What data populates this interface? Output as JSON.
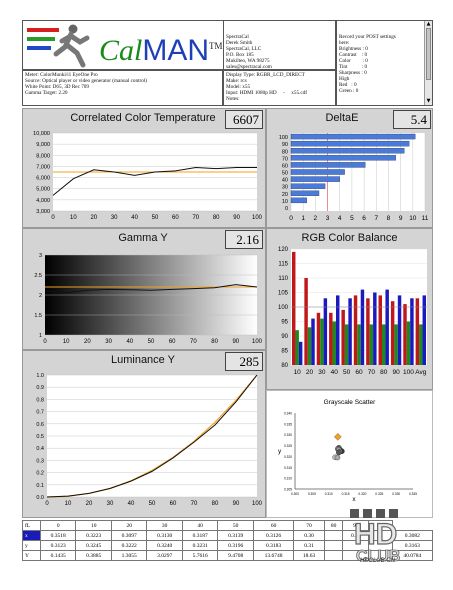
{
  "colors": {
    "panel_bg": "#d4d4d4",
    "plot_bg": "#ffffff",
    "curve": "#111111",
    "target": "#f0a020",
    "bars": "#4a7bd8",
    "red": "#c0181a",
    "green": "#1e8a1e",
    "blue": "#1a1ac0"
  },
  "logo": {
    "text_cal": "Cal",
    "text_man": "MAN",
    "tm": "TM",
    "icon": "running-man-icon"
  },
  "company": [
    "SpectraCal",
    "Derek Smith",
    "SpectraCal, LLC",
    "P.O. Box 185",
    "Mukilteo, WA 98275",
    "sales@spectracal.com"
  ],
  "notes": [
    "Record your POST settings",
    "here:",
    "",
    "Brightness : 0",
    "Contrast    : 0",
    "Color         : 0",
    "Tint           : 0",
    "Sharpness : 0",
    "",
    "High",
    "Red   : 0",
    "Green : 0"
  ],
  "meter": [
    "Meter: ColorMunki/i1 EyeOne Pro",
    "Source: Optical player or video generator (manual control)",
    "White Point: D65, 3D Rec 709",
    "Gamma Target: 2.20"
  ],
  "display": [
    "Display Type: RGBR_LCD_DIRECT",
    "Make: rcs",
    "Model: x55",
    "Input: HDMI 1080p HD     -     x55.cdf",
    "Notes:"
  ],
  "panels": {
    "cct": {
      "title": "Correlated Color Temperature",
      "value": "6607"
    },
    "deltae": {
      "title": "DeltaE",
      "value": "5.4"
    },
    "gamma": {
      "title": "Gamma Y",
      "value": "2.16"
    },
    "rgb": {
      "title": "RGB Color Balance"
    },
    "lum": {
      "title": "Luminance Y",
      "value": "285"
    },
    "scatter": {
      "title": "Grayscale Scatter",
      "ylabel": "y",
      "xlabel": "x"
    }
  },
  "chart_data": [
    {
      "type": "line",
      "title": "Correlated Color Temperature",
      "x": [
        0,
        10,
        20,
        30,
        40,
        50,
        60,
        70,
        80,
        90,
        100
      ],
      "ylim": [
        3000,
        10000
      ],
      "yticks": [
        "10,000",
        "9,000",
        "8,000",
        "7,000",
        "6,000",
        "5,000",
        "4,000",
        "3,000"
      ],
      "xticks": [
        "0",
        "10",
        "20",
        "30",
        "40",
        "50",
        "60",
        "70",
        "80",
        "90",
        "100"
      ],
      "series": [
        {
          "values": [
            4400,
            5900,
            6700,
            6500,
            6200,
            6500,
            6600,
            6900,
            6800,
            6900,
            6900
          ]
        }
      ],
      "target": 6500
    },
    {
      "type": "bar",
      "title": "DeltaE",
      "orientation": "horizontal",
      "categories": [
        "100",
        "90",
        "80",
        "70",
        "60",
        "50",
        "40",
        "30",
        "20",
        "10",
        "0"
      ],
      "values": [
        10.2,
        9.7,
        9.3,
        8.6,
        6.1,
        4.4,
        4.0,
        2.8,
        2.3,
        1.3,
        0
      ],
      "xlim": [
        0,
        11
      ],
      "xticks": [
        "0",
        "1",
        "2",
        "3",
        "4",
        "5",
        "6",
        "7",
        "8",
        "9",
        "10",
        "11"
      ]
    },
    {
      "type": "line",
      "title": "Gamma Y",
      "x": [
        0,
        10,
        20,
        30,
        40,
        50,
        60,
        70,
        80,
        90,
        100
      ],
      "ylim": [
        1,
        3
      ],
      "yticks": [
        "3",
        "2.5",
        "2",
        "1.5",
        "1"
      ],
      "xticks": [
        "0",
        "10",
        "20",
        "30",
        "40",
        "50",
        "60",
        "70",
        "80",
        "90",
        "100"
      ],
      "series": [
        {
          "values": [
            2.1,
            2.06,
            2.12,
            2.14,
            2.13,
            2.12,
            2.14,
            2.16,
            2.18,
            2.26,
            2.2
          ]
        }
      ],
      "target": 2.2
    },
    {
      "type": "bar",
      "title": "RGB Color Balance",
      "categories": [
        "10",
        "20",
        "30",
        "40",
        "50",
        "60",
        "70",
        "80",
        "90",
        "100",
        "Avg"
      ],
      "ylim": [
        80,
        120
      ],
      "yticks": [
        "120",
        "115",
        "110",
        "105",
        "100",
        "95",
        "90",
        "85",
        "80"
      ],
      "series": [
        {
          "name": "Red",
          "values": [
            119,
            110,
            98,
            98,
            99,
            104,
            103,
            104,
            102,
            101,
            103
          ]
        },
        {
          "name": "Green",
          "values": [
            92,
            93,
            96,
            95,
            94,
            94,
            94,
            94,
            94,
            95,
            94
          ]
        },
        {
          "name": "Blue",
          "values": [
            88,
            96,
            103,
            104,
            103,
            106,
            105,
            106,
            104,
            103,
            104
          ]
        }
      ]
    },
    {
      "type": "line",
      "title": "Luminance Y",
      "x": [
        0,
        10,
        20,
        30,
        40,
        50,
        60,
        70,
        80,
        90,
        100
      ],
      "ylim": [
        0,
        1
      ],
      "yticks": [
        "1.0",
        "0.9",
        "0.8",
        "0.7",
        "0.6",
        "0.5",
        "0.4",
        "0.3",
        "0.2",
        "0.1",
        "0.0"
      ],
      "xticks": [
        "0",
        "10",
        "20",
        "30",
        "40",
        "50",
        "60",
        "70",
        "80",
        "90",
        "100"
      ],
      "series": [
        {
          "values": [
            0,
            0.007,
            0.03,
            0.07,
            0.13,
            0.21,
            0.32,
            0.45,
            0.59,
            0.78,
            1.0
          ]
        }
      ]
    },
    {
      "type": "scatter",
      "title": "Grayscale Scatter",
      "xticks": [
        "0.300",
        "0.305",
        "0.310",
        "0.315",
        "0.320",
        "0.325",
        "0.330",
        "0.335"
      ],
      "yticks": [
        "0.340",
        "0.335",
        "0.330",
        "0.325",
        "0.320",
        "0.315",
        "0.310",
        "0.305"
      ],
      "points": [
        [
          0.3128,
          0.3233
        ],
        [
          0.3131,
          0.3228
        ],
        [
          0.313,
          0.324
        ],
        [
          0.3134,
          0.323
        ],
        [
          0.3139,
          0.3224
        ],
        [
          0.3127,
          0.3235
        ],
        [
          0.313,
          0.3231
        ],
        [
          0.3119,
          0.3196
        ],
        [
          0.3126,
          0.3195
        ],
        [
          0.3133,
          0.3222
        ],
        [
          0.313,
          0.3218
        ]
      ],
      "target": [
        0.3127,
        0.329
      ]
    }
  ],
  "table": {
    "header": [
      "fL",
      "0",
      "10",
      "20",
      "30",
      "40",
      "50",
      "60",
      "70",
      "80",
      "90",
      "100"
    ],
    "rows": [
      {
        "label": "x",
        "cells": [
          "0.3518",
          "0.3223",
          "0.3097",
          "0.3130",
          "0.3187",
          "0.3139",
          "0.3126",
          "0.30",
          "",
          "0.30",
          "",
          "0.3082"
        ]
      },
      {
        "label": "y",
        "cells": [
          "0.3123",
          "0.3245",
          "0.3222",
          "0.3240",
          "0.3231",
          "0.3196",
          "0.3183",
          "0.31",
          "",
          "",
          "",
          "0.3163"
        ]
      },
      {
        "label": "Y",
        "cells": [
          "0.1435",
          "0.3885",
          "1.3055",
          "3.0297",
          "5.7616",
          "9.4708",
          "13.6748",
          "18.63",
          "",
          "",
          "",
          "40.0784"
        ]
      }
    ]
  },
  "watermark": "HDCLUB.CN"
}
